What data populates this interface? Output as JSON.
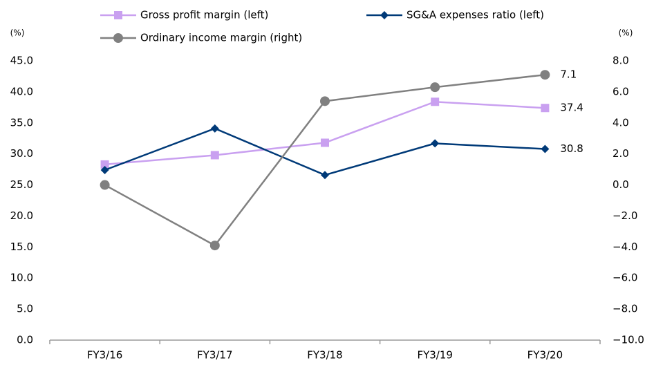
{
  "chart_data": {
    "type": "line",
    "categories": [
      "FY3/16",
      "FY3/17",
      "FY3/18",
      "FY3/19",
      "FY3/20"
    ],
    "series": [
      {
        "name": "Gross profit margin (left)",
        "color": "#c9a0f0",
        "marker": "square",
        "values": [
          28.3,
          29.8,
          31.8,
          38.4,
          37.4
        ]
      },
      {
        "name": "SG&A expenses ratio (left)",
        "color": "#003a78",
        "marker": "diamond",
        "values": [
          27.4,
          34.1,
          26.6,
          31.7,
          30.8
        ]
      },
      {
        "name": "Ordinary income margin (right)",
        "color": "#808080",
        "marker": "circle",
        "axis": "y2",
        "values": [
          0.0,
          -3.9,
          5.4,
          6.3,
          7.1
        ]
      }
    ],
    "ylabel": "(%)",
    "y2label": "(%)",
    "ylim": [
      0,
      45
    ],
    "yticks": [
      {
        "value": 0,
        "label": "0.0"
      },
      {
        "value": 5,
        "label": "5.0"
      },
      {
        "value": 10,
        "label": "10.0"
      },
      {
        "value": 15,
        "label": "15.0"
      },
      {
        "value": 20,
        "label": "20.0"
      },
      {
        "value": 25,
        "label": "25.0"
      },
      {
        "value": 30,
        "label": "30.0"
      },
      {
        "value": 35,
        "label": "35.0"
      },
      {
        "value": 40,
        "label": "40.0"
      },
      {
        "value": 45,
        "label": "45.0"
      }
    ],
    "y2lim": [
      -10,
      8
    ],
    "y2ticks": [
      {
        "value": -10,
        "label": "−10.0"
      },
      {
        "value": -8,
        "label": "−8.0"
      },
      {
        "value": -6,
        "label": "−6.0"
      },
      {
        "value": -4,
        "label": "−4.0"
      },
      {
        "value": -2,
        "label": "−2.0"
      },
      {
        "value": 0,
        "label": "0.0"
      },
      {
        "value": 2,
        "label": "2.0"
      },
      {
        "value": 4,
        "label": "4.0"
      },
      {
        "value": 6,
        "label": "6.0"
      },
      {
        "value": 8,
        "label": "8.0"
      }
    ],
    "grid": false
  }
}
